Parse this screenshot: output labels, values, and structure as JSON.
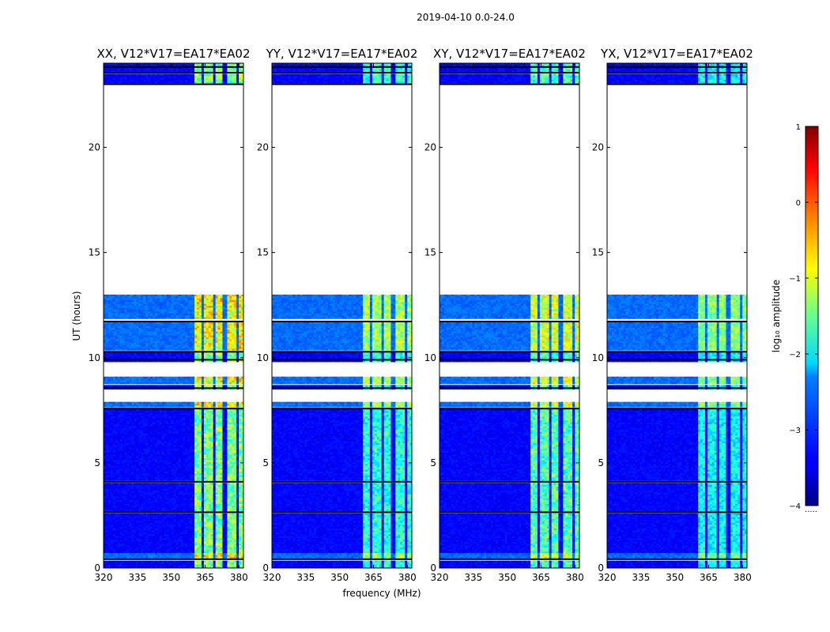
{
  "suptitle": "2019-04-10 0.0-24.0",
  "chart_data": {
    "type": "heatmap",
    "xlabel": "frequency (MHz)",
    "ylabel": "UT (hours)",
    "xlim": [
      320,
      382
    ],
    "ylim": [
      0,
      24
    ],
    "xticks": [
      "320",
      "335",
      "350",
      "365",
      "380"
    ],
    "yticks": [
      "0",
      "5",
      "10",
      "15",
      "20"
    ],
    "xtick_values": [
      320,
      335,
      350,
      365,
      380
    ],
    "ytick_values": [
      0,
      5,
      10,
      15,
      20
    ],
    "panels": [
      {
        "title": "XX, V12*V17=EA17*EA02",
        "rfi_level": 0.62
      },
      {
        "title": "YY, V12*V17=EA17*EA02",
        "rfi_level": 0.5
      },
      {
        "title": "XY, V12*V17=EA17*EA02",
        "rfi_level": 0.56
      },
      {
        "title": "YX, V12*V17=EA17*EA02",
        "rfi_level": 0.45
      }
    ],
    "rfi_channels_mhz": [
      [
        360,
        363.5
      ],
      [
        364.5,
        368.5
      ],
      [
        369.5,
        373
      ],
      [
        374.5,
        378.5
      ],
      [
        379.5,
        382
      ]
    ],
    "data_time_ranges_h": [
      [
        0.0,
        0.35
      ],
      [
        0.45,
        2.6
      ],
      [
        2.7,
        4.05
      ],
      [
        4.15,
        7.55
      ],
      [
        7.65,
        7.9
      ],
      [
        8.5,
        8.7
      ],
      [
        8.75,
        9.1
      ],
      [
        9.8,
        10.3
      ],
      [
        10.35,
        11.7
      ],
      [
        11.85,
        13.0
      ],
      [
        23.05,
        23.5
      ],
      [
        23.55,
        23.8
      ],
      [
        23.85,
        24.0
      ]
    ],
    "bright_time_ranges_h": [
      [
        7.65,
        7.9
      ],
      [
        8.75,
        9.1
      ],
      [
        10.35,
        11.7
      ],
      [
        11.85,
        13.0
      ],
      [
        0.45,
        0.7
      ]
    ],
    "colorbar": {
      "label": "log₁₀ amplitude",
      "range": [
        -4,
        1
      ],
      "ticks": [
        "−4",
        "−3",
        "−2",
        "−1",
        "0",
        "1"
      ],
      "tick_values": [
        -4,
        -3,
        -2,
        -1,
        0,
        1
      ],
      "footnote": "....."
    }
  }
}
